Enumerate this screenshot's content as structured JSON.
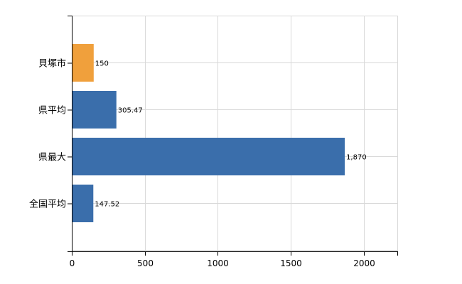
{
  "chart_data": {
    "type": "bar",
    "orientation": "horizontal",
    "categories": [
      "貝塚市",
      "県平均",
      "県最大",
      "全国平均"
    ],
    "values": [
      150,
      305.47,
      1870,
      147.52
    ],
    "value_labels": [
      "150",
      "305.47",
      "1,870",
      "147.52"
    ],
    "bar_colors": [
      "#f0a03c",
      "#3a6eab",
      "#3a6eab",
      "#3a6eab"
    ],
    "x_ticks": [
      0,
      500,
      1000,
      1500,
      2000
    ],
    "x_tick_labels": [
      "0",
      "500",
      "1000",
      "1500",
      "2000"
    ],
    "xlim": [
      0,
      2230
    ],
    "grid": true,
    "title": "",
    "xlabel": "",
    "ylabel": ""
  }
}
